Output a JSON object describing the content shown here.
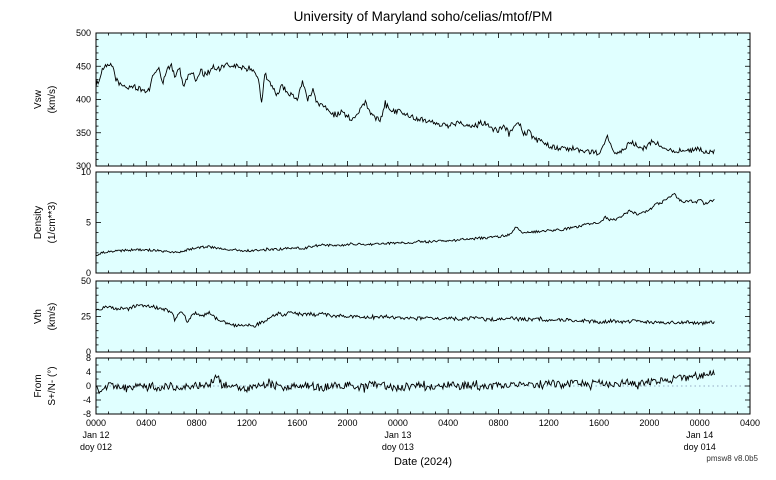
{
  "title": "University of Maryland  soho/celias/mtof/PM",
  "xlabel": "Date (2024)",
  "watermark": "pmsw8 v8.0b5",
  "colors": {
    "panel_bg": "#E0FFFF",
    "trace": "#000000",
    "frame": "#000000",
    "zero_line": "#7a8fb0"
  },
  "x_axis": {
    "range_hours": [
      0,
      52
    ],
    "major_tick_hours": 4,
    "minor_tick_hours": 1,
    "tick_labels": [
      "0000",
      "0400",
      "0800",
      "1200",
      "1600",
      "2000",
      "0000",
      "0400",
      "0800",
      "1200",
      "1600",
      "2000",
      "0000",
      "0400"
    ],
    "day_labels": [
      {
        "hour": 0,
        "line1": "Jan 12",
        "line2": "doy 012"
      },
      {
        "hour": 24,
        "line1": "Jan 13",
        "line2": "doy 013"
      },
      {
        "hour": 48,
        "line1": "Jan 14",
        "line2": "doy 014"
      }
    ]
  },
  "chart_data": [
    {
      "type": "line",
      "name": "vsw",
      "ylabel_lines": [
        "Vsw",
        "(km/s)"
      ],
      "ylim": [
        300,
        500
      ],
      "yticks": [
        300,
        350,
        400,
        450,
        500
      ],
      "ytick_minor_step": 10,
      "noise": 4,
      "points": [
        [
          0,
          422
        ],
        [
          0.3,
          432
        ],
        [
          0.6,
          448
        ],
        [
          1.0,
          450
        ],
        [
          1.3,
          452
        ],
        [
          1.6,
          430
        ],
        [
          2,
          421
        ],
        [
          2.5,
          418
        ],
        [
          3,
          420
        ],
        [
          3.5,
          415
        ],
        [
          4,
          412
        ],
        [
          4.3,
          418
        ],
        [
          4.6,
          440
        ],
        [
          5,
          448
        ],
        [
          5.3,
          420
        ],
        [
          5.6,
          445
        ],
        [
          6,
          450
        ],
        [
          6.3,
          435
        ],
        [
          6.6,
          448
        ],
        [
          7,
          420
        ],
        [
          7.3,
          435
        ],
        [
          7.6,
          442
        ],
        [
          8,
          428
        ],
        [
          8.3,
          445
        ],
        [
          8.6,
          438
        ],
        [
          9,
          442
        ],
        [
          9.3,
          450
        ],
        [
          9.6,
          444
        ],
        [
          10,
          448
        ],
        [
          10.5,
          452
        ],
        [
          11,
          450
        ],
        [
          11.5,
          449
        ],
        [
          12,
          446
        ],
        [
          12.4,
          442
        ],
        [
          12.8,
          438
        ],
        [
          13,
          418
        ],
        [
          13.2,
          395
        ],
        [
          13.4,
          440
        ],
        [
          14,
          418
        ],
        [
          14.4,
          408
        ],
        [
          14.8,
          420
        ],
        [
          15.2,
          412
        ],
        [
          15.6,
          405
        ],
        [
          16,
          400
        ],
        [
          16.4,
          428
        ],
        [
          16.8,
          400
        ],
        [
          17.2,
          412
        ],
        [
          17.6,
          395
        ],
        [
          18,
          392
        ],
        [
          18.5,
          385
        ],
        [
          19,
          375
        ],
        [
          19.5,
          382
        ],
        [
          20,
          374
        ],
        [
          20.5,
          370
        ],
        [
          21,
          382
        ],
        [
          21.4,
          398
        ],
        [
          21.8,
          378
        ],
        [
          22.2,
          372
        ],
        [
          22.6,
          368
        ],
        [
          23,
          396
        ],
        [
          23.4,
          386
        ],
        [
          23.8,
          382
        ],
        [
          24.2,
          384
        ],
        [
          24.6,
          378
        ],
        [
          25,
          374
        ],
        [
          25.5,
          372
        ],
        [
          26,
          370
        ],
        [
          26.5,
          368
        ],
        [
          27,
          366
        ],
        [
          27.5,
          362
        ],
        [
          28,
          360
        ],
        [
          28.5,
          364
        ],
        [
          29,
          366
        ],
        [
          29.5,
          362
        ],
        [
          30,
          360
        ],
        [
          30.5,
          364
        ],
        [
          31,
          366
        ],
        [
          31.5,
          356
        ],
        [
          32,
          354
        ],
        [
          32.4,
          362
        ],
        [
          32.8,
          350
        ],
        [
          33.2,
          356
        ],
        [
          33.6,
          368
        ],
        [
          34,
          348
        ],
        [
          34.4,
          352
        ],
        [
          34.8,
          342
        ],
        [
          35.2,
          338
        ],
        [
          35.6,
          334
        ],
        [
          36,
          331
        ],
        [
          36.5,
          328
        ],
        [
          37,
          326
        ],
        [
          37.5,
          325
        ],
        [
          38,
          324
        ],
        [
          38.5,
          323
        ],
        [
          39,
          322
        ],
        [
          39.5,
          321
        ],
        [
          40,
          320
        ],
        [
          40.4,
          330
        ],
        [
          40.7,
          344
        ],
        [
          41,
          326
        ],
        [
          41.4,
          320
        ],
        [
          41.8,
          324
        ],
        [
          42.2,
          330
        ],
        [
          42.6,
          336
        ],
        [
          43,
          330
        ],
        [
          43.4,
          325
        ],
        [
          43.8,
          329
        ],
        [
          44.2,
          338
        ],
        [
          44.6,
          334
        ],
        [
          45,
          330
        ],
        [
          45.5,
          326
        ],
        [
          46,
          324
        ],
        [
          46.5,
          323
        ],
        [
          47,
          322
        ],
        [
          47.5,
          323
        ],
        [
          48,
          326
        ],
        [
          48.4,
          322
        ],
        [
          48.8,
          320
        ],
        [
          49.2,
          321
        ]
      ]
    },
    {
      "type": "line",
      "name": "density",
      "ylabel_lines": [
        "Density",
        "(1/cm**3)"
      ],
      "ylim": [
        0,
        10
      ],
      "yticks": [
        0,
        5,
        10
      ],
      "ytick_minor_step": 1,
      "noise": 0.12,
      "points": [
        [
          0,
          1.8
        ],
        [
          0.5,
          2.0
        ],
        [
          1,
          2.1
        ],
        [
          2,
          2.2
        ],
        [
          3,
          2.3
        ],
        [
          4,
          2.3
        ],
        [
          5,
          2.2
        ],
        [
          6,
          2.1
        ],
        [
          6.5,
          2.0
        ],
        [
          7,
          2.2
        ],
        [
          8,
          2.5
        ],
        [
          9,
          2.6
        ],
        [
          9.5,
          2.5
        ],
        [
          10,
          2.4
        ],
        [
          11,
          2.3
        ],
        [
          12,
          2.2
        ],
        [
          13,
          2.3
        ],
        [
          14,
          2.3
        ],
        [
          15,
          2.4
        ],
        [
          16,
          2.5
        ],
        [
          16.5,
          2.4
        ],
        [
          17,
          2.6
        ],
        [
          18,
          2.8
        ],
        [
          19,
          2.7
        ],
        [
          20,
          2.8
        ],
        [
          21,
          2.9
        ],
        [
          22,
          2.8
        ],
        [
          23,
          2.9
        ],
        [
          24,
          3.0
        ],
        [
          25,
          3.0
        ],
        [
          26,
          3.1
        ],
        [
          27,
          3.1
        ],
        [
          28,
          3.2
        ],
        [
          29,
          3.3
        ],
        [
          30,
          3.4
        ],
        [
          31,
          3.5
        ],
        [
          32,
          3.6
        ],
        [
          33,
          3.8
        ],
        [
          33.4,
          4.6
        ],
        [
          33.8,
          4.0
        ],
        [
          34.5,
          4.0
        ],
        [
          35,
          4.1
        ],
        [
          36,
          4.2
        ],
        [
          37,
          4.3
        ],
        [
          38,
          4.5
        ],
        [
          39,
          4.8
        ],
        [
          40,
          5.0
        ],
        [
          40.5,
          5.5
        ],
        [
          41,
          5.2
        ],
        [
          41.5,
          5.4
        ],
        [
          42,
          5.8
        ],
        [
          42.5,
          6.2
        ],
        [
          43,
          5.8
        ],
        [
          43.5,
          6.0
        ],
        [
          44,
          6.2
        ],
        [
          44.5,
          6.8
        ],
        [
          45,
          7.0
        ],
        [
          45.5,
          7.5
        ],
        [
          46,
          7.8
        ],
        [
          46.3,
          7.3
        ],
        [
          46.8,
          7.0
        ],
        [
          47.2,
          7.2
        ],
        [
          47.6,
          6.9
        ],
        [
          48,
          7.3
        ],
        [
          48.4,
          6.8
        ],
        [
          48.8,
          7.1
        ],
        [
          49.2,
          7.2
        ]
      ]
    },
    {
      "type": "line",
      "name": "vth",
      "ylabel_lines": [
        "Vth",
        "(km/s)"
      ],
      "ylim": [
        0,
        50
      ],
      "yticks": [
        0,
        25,
        50
      ],
      "ytick_minor_step": 5,
      "noise": 1.2,
      "points": [
        [
          0,
          30
        ],
        [
          0.5,
          31
        ],
        [
          1,
          32
        ],
        [
          1.5,
          30
        ],
        [
          2,
          31
        ],
        [
          2.5,
          30
        ],
        [
          3,
          32
        ],
        [
          3.5,
          33
        ],
        [
          4,
          33
        ],
        [
          4.5,
          32
        ],
        [
          5,
          31
        ],
        [
          5.5,
          30
        ],
        [
          6,
          28
        ],
        [
          6.3,
          22
        ],
        [
          6.6,
          28
        ],
        [
          7,
          26
        ],
        [
          7.3,
          20
        ],
        [
          7.6,
          27
        ],
        [
          8,
          27
        ],
        [
          8.5,
          25
        ],
        [
          9,
          28
        ],
        [
          9.5,
          24
        ],
        [
          10,
          22
        ],
        [
          10.5,
          20
        ],
        [
          11,
          19
        ],
        [
          11.5,
          18
        ],
        [
          12,
          19
        ],
        [
          12.5,
          18
        ],
        [
          13,
          20
        ],
        [
          13.5,
          22
        ],
        [
          14,
          25
        ],
        [
          14.5,
          27
        ],
        [
          15,
          26
        ],
        [
          15.5,
          28
        ],
        [
          16,
          27
        ],
        [
          16.5,
          26
        ],
        [
          17,
          27
        ],
        [
          17.5,
          26
        ],
        [
          18,
          27
        ],
        [
          18.5,
          26
        ],
        [
          19,
          25
        ],
        [
          19.5,
          26
        ],
        [
          20,
          25
        ],
        [
          21,
          25
        ],
        [
          22,
          24
        ],
        [
          23,
          25
        ],
        [
          24,
          24
        ],
        [
          25,
          23
        ],
        [
          26,
          24
        ],
        [
          27,
          23
        ],
        [
          28,
          24
        ],
        [
          29,
          23
        ],
        [
          30,
          24
        ],
        [
          31,
          23
        ],
        [
          32,
          23
        ],
        [
          33,
          24
        ],
        [
          34,
          23
        ],
        [
          35,
          23
        ],
        [
          36,
          22
        ],
        [
          37,
          23
        ],
        [
          38,
          22
        ],
        [
          39,
          22
        ],
        [
          40,
          21
        ],
        [
          41,
          22
        ],
        [
          42,
          21
        ],
        [
          43,
          22
        ],
        [
          44,
          21
        ],
        [
          45,
          21
        ],
        [
          46,
          21
        ],
        [
          47,
          21
        ],
        [
          48,
          20
        ],
        [
          49.2,
          21
        ]
      ]
    },
    {
      "type": "line",
      "name": "ns-angle",
      "ylabel_lines": [
        "From",
        "S+/N- (°)"
      ],
      "ylim": [
        -8,
        8
      ],
      "yticks": [
        -8,
        -4,
        0,
        4,
        8
      ],
      "ytick_minor_step": 2,
      "noise": 1.1,
      "zero_line": true,
      "points": [
        [
          0,
          0
        ],
        [
          0.4,
          -2
        ],
        [
          1,
          0.5
        ],
        [
          2,
          -1
        ],
        [
          3,
          0
        ],
        [
          4,
          0.5
        ],
        [
          5,
          -0.5
        ],
        [
          6,
          0
        ],
        [
          7,
          -0.5
        ],
        [
          8,
          0
        ],
        [
          9,
          0.5
        ],
        [
          9.6,
          2.5
        ],
        [
          10,
          0.5
        ],
        [
          11,
          -0.5
        ],
        [
          12,
          -1
        ],
        [
          13,
          0
        ],
        [
          14,
          0.3
        ],
        [
          15,
          -0.3
        ],
        [
          16,
          0.5
        ],
        [
          17,
          0
        ],
        [
          18,
          -0.5
        ],
        [
          19,
          0
        ],
        [
          20,
          0.3
        ],
        [
          21,
          -0.3
        ],
        [
          22,
          0.5
        ],
        [
          23,
          0
        ],
        [
          24,
          -0.5
        ],
        [
          25,
          0
        ],
        [
          26,
          0.3
        ],
        [
          27,
          -0.3
        ],
        [
          28,
          0.5
        ],
        [
          29,
          0
        ],
        [
          30,
          0.3
        ],
        [
          31,
          -0.5
        ],
        [
          32,
          0.5
        ],
        [
          33,
          0
        ],
        [
          34,
          0.3
        ],
        [
          35,
          0
        ],
        [
          36,
          0.5
        ],
        [
          37,
          0.3
        ],
        [
          38,
          1
        ],
        [
          39,
          0.5
        ],
        [
          40,
          0.8
        ],
        [
          41,
          0.5
        ],
        [
          42,
          1
        ],
        [
          43,
          0.8
        ],
        [
          44,
          1.2
        ],
        [
          45,
          1.5
        ],
        [
          46,
          2
        ],
        [
          47,
          2.5
        ],
        [
          48,
          3
        ],
        [
          48.6,
          3.5
        ],
        [
          49.2,
          4
        ]
      ]
    }
  ]
}
